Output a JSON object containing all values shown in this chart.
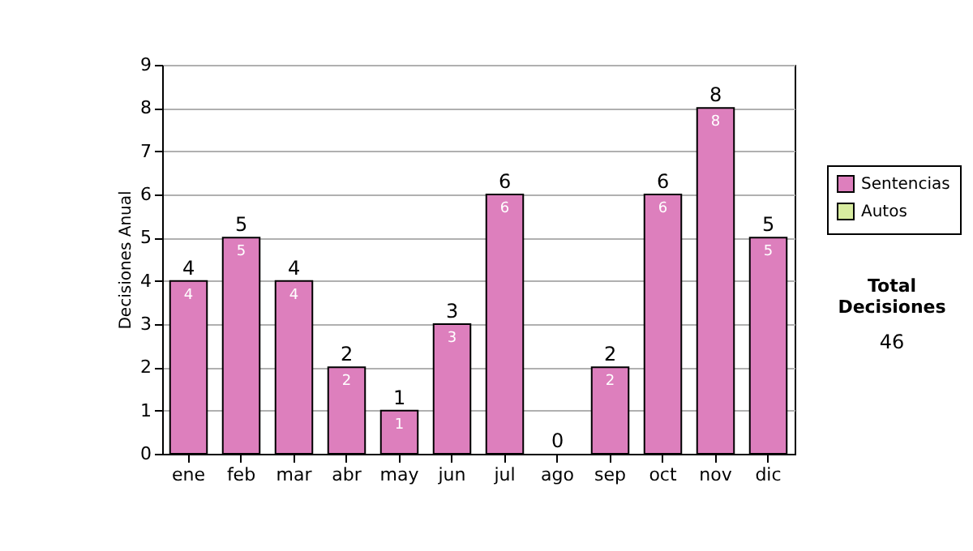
{
  "chart_data": {
    "type": "bar",
    "stacked": true,
    "ylabel": "Decisiones Anual",
    "categories": [
      "ene",
      "feb",
      "mar",
      "abr",
      "may",
      "jun",
      "jul",
      "ago",
      "sep",
      "oct",
      "nov",
      "dic"
    ],
    "series": [
      {
        "name": "Sentencias",
        "color": "#dd7fbd",
        "values": [
          4,
          5,
          4,
          2,
          1,
          3,
          6,
          0,
          2,
          6,
          8,
          5
        ],
        "value_labels": [
          "4",
          "5",
          "4",
          "2",
          "1",
          "3",
          "6",
          null,
          "2",
          "6",
          "8",
          "5"
        ]
      },
      {
        "name": "Autos",
        "color": "#d8eca0",
        "values": [
          0,
          0,
          0,
          0,
          0,
          0,
          0,
          0,
          0,
          0,
          0,
          0
        ]
      }
    ],
    "totals": [
      "4",
      "5",
      "4",
      "2",
      "1",
      "3",
      "6",
      "0",
      "2",
      "6",
      "8",
      "5"
    ],
    "ylim": [
      0,
      9
    ],
    "yticks": [
      0,
      1,
      2,
      3,
      4,
      5,
      6,
      7,
      8,
      9
    ],
    "grid": "y",
    "legend": "right",
    "annotations": [
      "Total Decisiones",
      "46"
    ]
  }
}
